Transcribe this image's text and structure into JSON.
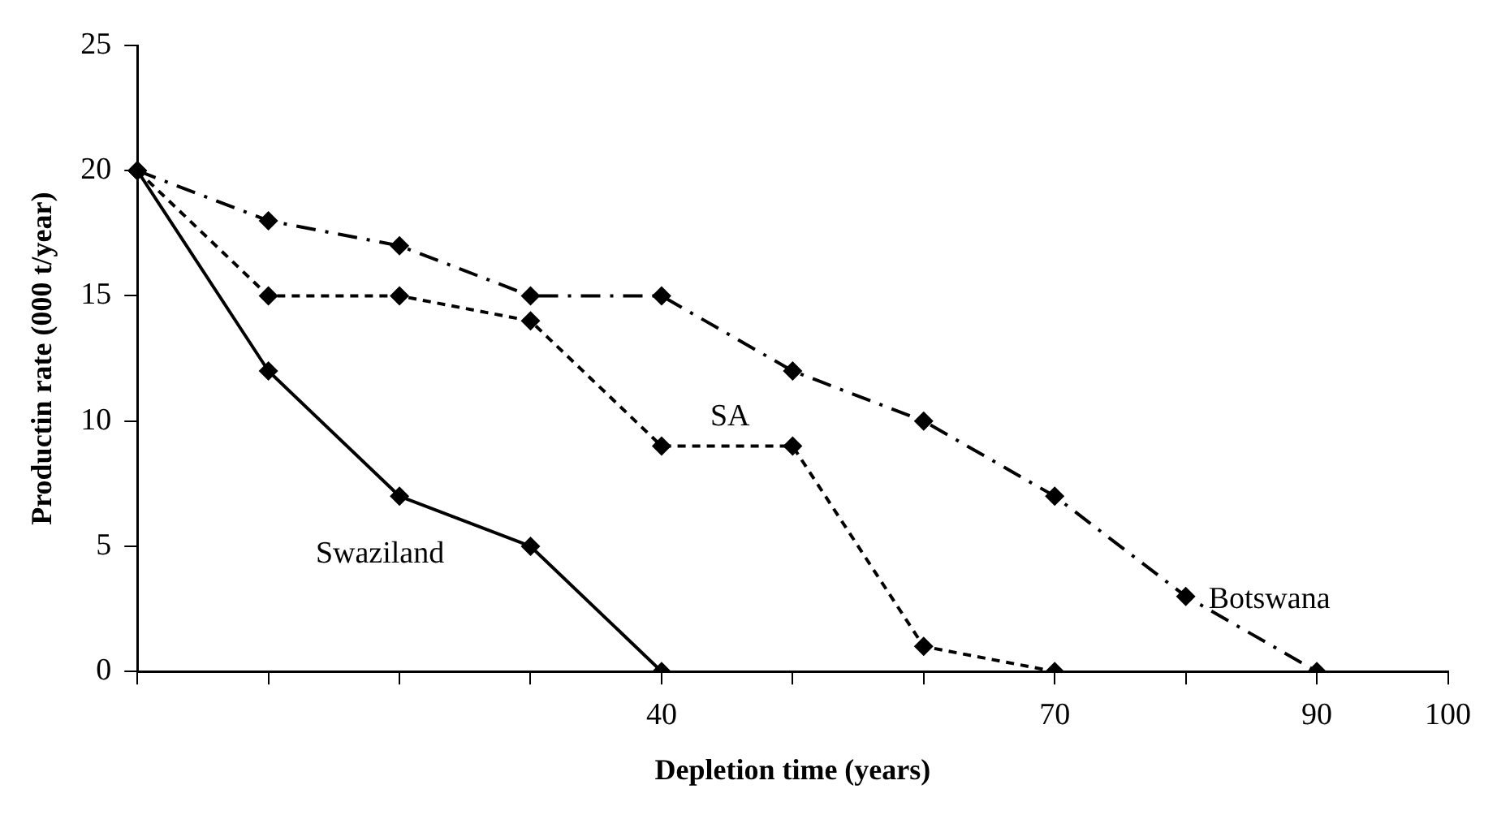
{
  "chart_data": {
    "type": "line",
    "xlabel": "Depletion time (years)",
    "ylabel": "Productin rate (000 t/year)",
    "categories": [
      null,
      null,
      null,
      null,
      "40",
      null,
      null,
      "70",
      null,
      "90",
      "100"
    ],
    "series": [
      {
        "name": "Swaziland",
        "color": "#000000",
        "line_style": "solid",
        "values": [
          20,
          12,
          7,
          5,
          0,
          null,
          null,
          null,
          null,
          null,
          null
        ]
      },
      {
        "name": "SA",
        "color": "#000000",
        "line_style": "dashed",
        "values": [
          20,
          15,
          15,
          14,
          9,
          9,
          1,
          0,
          null,
          null,
          null
        ]
      },
      {
        "name": "Botswana",
        "color": "#000000",
        "line_style": "dotted",
        "values": [
          20,
          18,
          17,
          15,
          15,
          12,
          10,
          7,
          3,
          0,
          null
        ]
      }
    ],
    "ylim": [
      0,
      25
    ],
    "yticks": [
      0,
      5,
      10,
      15,
      20,
      25
    ],
    "grid": false,
    "legend": false,
    "marker": "diamond"
  }
}
